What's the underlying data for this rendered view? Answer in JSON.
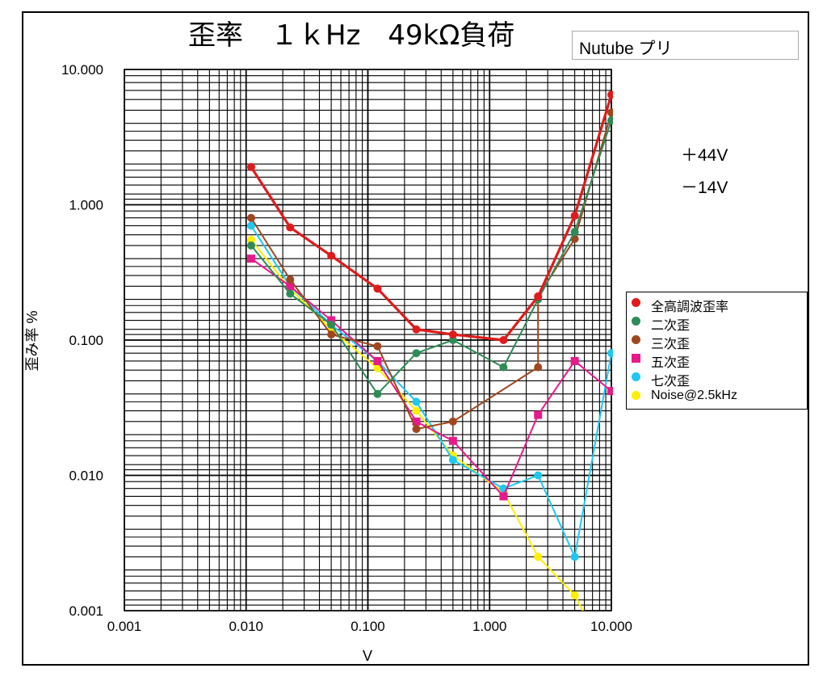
{
  "chart_data": {
    "type": "line",
    "title": "歪率　１ｋHz　49kΩ負荷",
    "xlabel": "V",
    "ylabel": "歪み率 %",
    "xscale": "log",
    "yscale": "log",
    "xlim": [
      0.001,
      10
    ],
    "ylim": [
      0.001,
      10
    ],
    "grid": true,
    "legend_position": "right",
    "x_tick_labels": [
      "0.001",
      "0.010",
      "0.100",
      "1.000",
      "10.000"
    ],
    "y_tick_labels": [
      "0.001",
      "0.010",
      "0.100",
      "1.000",
      "10.000"
    ],
    "annotations": [
      "Nutube プリ",
      "＋44V",
      "－14V"
    ],
    "series": [
      {
        "name": "全高調波歪率",
        "color": "#e01b1b",
        "marker": "circle",
        "width": 3.2,
        "x": [
          0.011,
          0.023,
          0.05,
          0.12,
          0.25,
          0.5,
          1.3,
          2.5,
          5,
          10
        ],
        "y": [
          1.9,
          0.68,
          0.42,
          0.24,
          0.12,
          0.11,
          0.1,
          0.21,
          0.83,
          6.5
        ]
      },
      {
        "name": "二次歪",
        "color": "#2e8b57",
        "marker": "circle",
        "width": 2,
        "x": [
          0.011,
          0.023,
          0.05,
          0.12,
          0.25,
          0.5,
          1.3,
          2.5,
          5,
          10
        ],
        "y": [
          0.5,
          0.22,
          0.13,
          0.04,
          0.08,
          0.1,
          0.063,
          0.2,
          0.63,
          4.2
        ]
      },
      {
        "name": "三次歪",
        "color": "#a0461e",
        "marker": "circle",
        "width": 2,
        "x": [
          0.011,
          0.023,
          0.05,
          0.12,
          0.25,
          0.5,
          2.5,
          2.5,
          5,
          10
        ],
        "y": [
          0.8,
          0.28,
          0.11,
          0.09,
          0.022,
          0.025,
          0.063,
          0.21,
          0.56,
          4.8
        ]
      },
      {
        "name": "五次歪",
        "color": "#e8198c",
        "marker": "square",
        "width": 2,
        "x": [
          0.011,
          0.023,
          0.05,
          0.12,
          0.25,
          0.5,
          1.3,
          2.5,
          5,
          10
        ],
        "y": [
          0.4,
          0.25,
          0.14,
          0.07,
          0.025,
          0.018,
          0.007,
          0.028,
          0.07,
          0.042
        ]
      },
      {
        "name": "七次歪",
        "color": "#1ec8f0",
        "marker": "circle",
        "width": 2,
        "x": [
          0.011,
          0.023,
          0.05,
          0.12,
          0.25,
          0.5,
          1.3,
          2.5,
          5,
          10
        ],
        "y": [
          0.7,
          0.25,
          0.13,
          0.07,
          0.035,
          0.013,
          0.008,
          0.01,
          0.0025,
          0.08
        ]
      },
      {
        "name": "Noise@2.5kHz",
        "color": "#ffee00",
        "marker": "circle",
        "width": 2,
        "x": [
          0.011,
          0.023,
          0.05,
          0.12,
          0.25,
          0.5,
          1.3,
          2.5,
          5,
          6
        ],
        "y": [
          0.55,
          0.24,
          0.12,
          0.062,
          0.03,
          0.014,
          0.0075,
          0.0025,
          0.0013,
          0.00095
        ]
      }
    ]
  }
}
